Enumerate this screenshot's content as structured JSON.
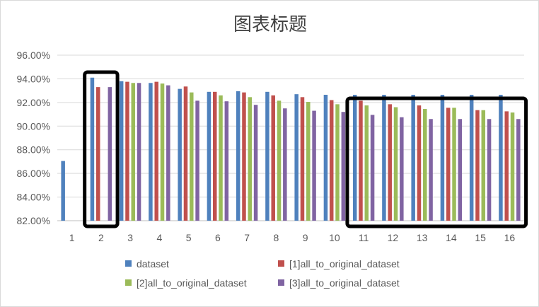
{
  "chart_data": {
    "type": "bar",
    "title": "图表标题",
    "xlabel": "",
    "ylabel": "",
    "categories": [
      "1",
      "2",
      "3",
      "4",
      "5",
      "6",
      "7",
      "8",
      "9",
      "10",
      "11",
      "12",
      "13",
      "14",
      "15",
      "16"
    ],
    "y_ticks": [
      "82.00%",
      "84.00%",
      "86.00%",
      "88.00%",
      "90.00%",
      "92.00%",
      "94.00%",
      "96.00%"
    ],
    "ylim": [
      82,
      96
    ],
    "grid": true,
    "legend_position": "bottom",
    "series": [
      {
        "name": "dataset",
        "color": "#4f81bd",
        "values": [
          87.05,
          94.1,
          93.8,
          93.65,
          93.15,
          92.9,
          92.95,
          92.9,
          92.7,
          92.65,
          92.65,
          92.65,
          92.65,
          92.65,
          92.65,
          92.65
        ]
      },
      {
        "name": "[1]all_to_original_dataset",
        "color": "#c0504d",
        "values": [
          null,
          93.3,
          93.75,
          93.75,
          93.35,
          92.9,
          92.85,
          92.6,
          92.45,
          92.2,
          92.15,
          91.85,
          91.75,
          91.55,
          91.35,
          91.25
        ]
      },
      {
        "name": "[2]all_to_original_dataset",
        "color": "#9bbb59",
        "values": [
          null,
          null,
          93.65,
          93.6,
          92.85,
          92.6,
          92.45,
          92.15,
          92.05,
          91.85,
          91.75,
          91.6,
          91.45,
          91.55,
          91.35,
          91.15
        ]
      },
      {
        "name": "[3]all_to_original_dataset",
        "color": "#8064a2",
        "values": [
          null,
          93.3,
          93.65,
          93.45,
          92.15,
          92.1,
          91.8,
          91.5,
          91.3,
          91.2,
          90.95,
          90.75,
          90.6,
          90.6,
          90.6,
          90.6
        ]
      }
    ],
    "highlight_boxes": [
      {
        "from_category": "2",
        "to_category": "2"
      },
      {
        "from_category": "11",
        "to_category": "16"
      }
    ]
  }
}
